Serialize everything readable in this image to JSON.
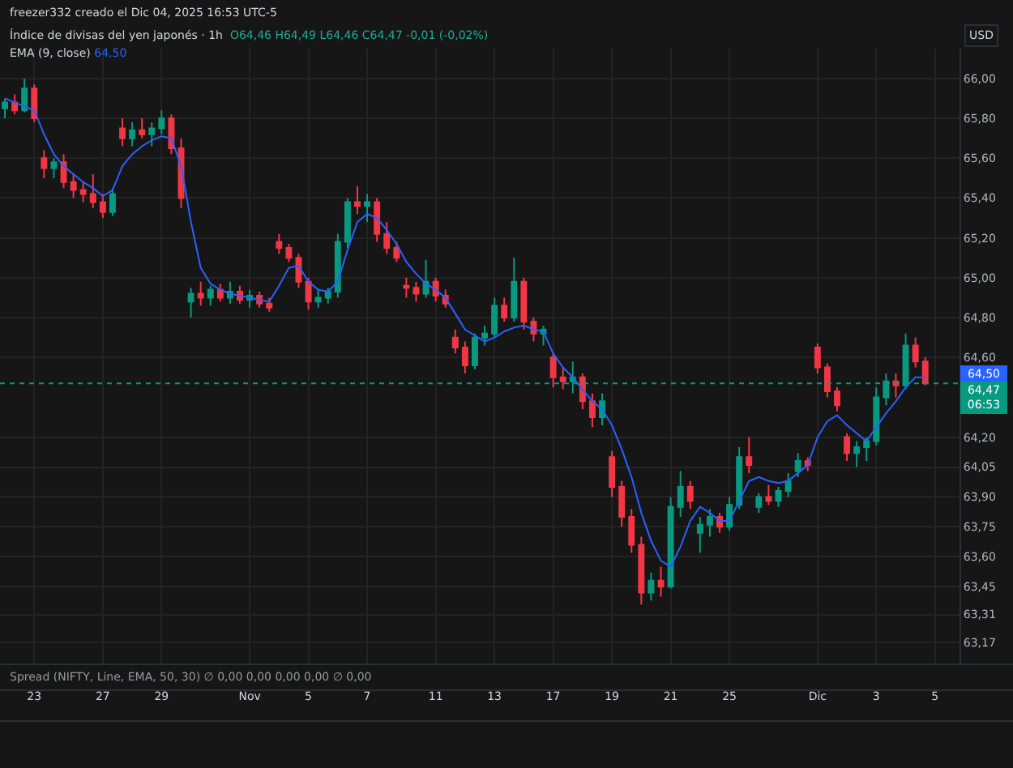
{
  "chart_data": {
    "type": "candlestick",
    "title": "Índice de divisas del yen japonés · 1h",
    "subtitle": "O64,46 H64,49 L64,46 C64,47 -0,01 (-0,02%)",
    "ylabel": "USD",
    "categories": [
      null,
      null,
      null,
      "23",
      null,
      null,
      null,
      null,
      null,
      null,
      "27",
      null,
      null,
      null,
      null,
      null,
      "29",
      null,
      null,
      null,
      null,
      null,
      null,
      null,
      null,
      "Nov",
      null,
      null,
      null,
      null,
      null,
      "5",
      null,
      null,
      null,
      null,
      null,
      "7",
      null,
      null,
      null,
      null,
      null,
      null,
      "11",
      null,
      null,
      null,
      null,
      null,
      "13",
      null,
      null,
      null,
      null,
      null,
      "17",
      null,
      null,
      null,
      null,
      null,
      "19",
      null,
      null,
      null,
      null,
      null,
      "21",
      null,
      null,
      null,
      null,
      null,
      "25",
      null,
      null,
      null,
      null,
      null,
      null,
      null,
      null,
      "Dic",
      null,
      null,
      null,
      null,
      null,
      "3",
      null,
      null,
      null,
      null,
      null,
      "5",
      null,
      null
    ],
    "series": [
      {
        "type": "line",
        "name": "EMA (9, close)",
        "color": "#2962ff",
        "values": [
          65.9,
          65.88,
          65.86,
          65.84,
          65.72,
          65.62,
          65.56,
          65.52,
          65.48,
          65.45,
          65.41,
          65.44,
          65.56,
          65.62,
          65.66,
          65.69,
          65.71,
          65.7,
          65.56,
          65.28,
          65.05,
          64.97,
          64.94,
          64.92,
          64.91,
          64.9,
          64.89,
          64.88,
          64.96,
          65.05,
          65.06,
          64.98,
          64.94,
          64.93,
          64.98,
          65.14,
          65.28,
          65.32,
          65.3,
          65.24,
          65.17,
          65.08,
          65.02,
          64.97,
          64.94,
          64.9,
          64.82,
          64.74,
          64.71,
          64.68,
          64.7,
          64.73,
          64.75,
          64.76,
          64.74,
          64.73,
          64.62,
          64.55,
          64.5,
          64.44,
          64.38,
          64.34,
          64.26,
          64.14,
          64.0,
          63.82,
          63.68,
          63.58,
          63.55,
          63.65,
          63.78,
          63.85,
          63.82,
          63.78,
          63.78,
          63.88,
          63.98,
          64.0,
          63.98,
          63.97,
          63.98,
          64.02,
          64.06,
          64.2,
          64.28,
          64.31,
          64.26,
          64.22,
          64.18,
          64.25,
          64.32,
          64.38,
          64.45,
          64.5,
          64.5,
          null,
          null,
          null
        ]
      },
      {
        "colors": [
          "#089981",
          "#f23645",
          "#089981",
          "#f23645",
          "#f23645",
          "#089981",
          "#f23645",
          "#f23645",
          "#f23645",
          "#f23645",
          "#f23645",
          "#089981",
          "#f23645",
          "#089981",
          "#f23645",
          "#089981",
          "#089981",
          "#f23645",
          "#f23645",
          "#089981",
          "#f23645",
          "#089981",
          "#f23645",
          "#089981",
          "#f23645",
          "#089981",
          "#f23645",
          "#f23645",
          "#f23645",
          "#f23645",
          "#f23645",
          "#f23645",
          "#089981",
          "#089981",
          "#089981",
          "#089981",
          "#f23645",
          "#089981",
          "#f23645",
          "#f23645",
          "#f23645",
          "#f23645",
          "#f23645",
          "#089981",
          "#f23645",
          "#f23645",
          "#f23645",
          "#f23645",
          "#089981",
          "#089981",
          "#089981",
          "#f23645",
          "#089981",
          "#f23645",
          "#f23645",
          "#089981",
          "#f23645",
          "#f23645",
          "#089981",
          "#f23645",
          "#f23645",
          "#089981",
          "#f23645",
          "#f23645",
          "#f23645",
          "#f23645",
          "#089981",
          "#f23645",
          "#089981",
          "#089981",
          "#f23645",
          "#089981",
          "#089981",
          "#f23645",
          "#089981",
          "#089981",
          "#f23645",
          "#089981",
          "#f23645",
          "#089981",
          "#089981",
          "#089981",
          "#f23645",
          "#f23645",
          "#f23645",
          "#f23645",
          "#f23645",
          "#089981",
          "#089981",
          "#089981",
          "#089981",
          "#f23645",
          "#089981",
          "#f23645",
          "#f23645",
          null,
          null,
          null
        ],
        "ohlc": [
          [
            65.85,
            65.9,
            65.8,
            65.88
          ],
          [
            65.88,
            65.92,
            65.82,
            65.84
          ],
          [
            65.84,
            66.0,
            65.83,
            65.95
          ],
          [
            65.95,
            65.97,
            65.78,
            65.8
          ],
          [
            65.6,
            65.64,
            65.5,
            65.55
          ],
          [
            65.55,
            65.6,
            65.5,
            65.58
          ],
          [
            65.58,
            65.62,
            65.45,
            65.48
          ],
          [
            65.48,
            65.52,
            65.4,
            65.44
          ],
          [
            65.44,
            65.48,
            65.38,
            65.42
          ],
          [
            65.42,
            65.52,
            65.35,
            65.38
          ],
          [
            65.38,
            65.42,
            65.3,
            65.33
          ],
          [
            65.33,
            65.45,
            65.31,
            65.42
          ],
          [
            65.75,
            65.8,
            65.66,
            65.7
          ],
          [
            65.7,
            65.78,
            65.66,
            65.74
          ],
          [
            65.74,
            65.8,
            65.7,
            65.72
          ],
          [
            65.72,
            65.78,
            65.66,
            65.75
          ],
          [
            65.75,
            65.84,
            65.72,
            65.8
          ],
          [
            65.8,
            65.82,
            65.62,
            65.65
          ],
          [
            65.65,
            65.7,
            65.35,
            65.4
          ],
          [
            64.88,
            64.95,
            64.8,
            64.92
          ],
          [
            64.92,
            64.98,
            64.86,
            64.9
          ],
          [
            64.9,
            64.96,
            64.86,
            64.94
          ],
          [
            64.94,
            64.97,
            64.88,
            64.9
          ],
          [
            64.9,
            64.98,
            64.87,
            64.93
          ],
          [
            64.93,
            64.96,
            64.87,
            64.89
          ],
          [
            64.89,
            64.94,
            64.85,
            64.91
          ],
          [
            64.91,
            64.93,
            64.85,
            64.87
          ],
          [
            64.87,
            64.9,
            64.83,
            64.85
          ],
          [
            65.18,
            65.22,
            65.12,
            65.15
          ],
          [
            65.15,
            65.17,
            65.08,
            65.1
          ],
          [
            65.1,
            65.12,
            64.95,
            64.98
          ],
          [
            64.98,
            65.0,
            64.84,
            64.88
          ],
          [
            64.88,
            64.94,
            64.85,
            64.9
          ],
          [
            64.9,
            64.95,
            64.87,
            64.93
          ],
          [
            64.93,
            65.22,
            64.9,
            65.18
          ],
          [
            65.18,
            65.4,
            65.15,
            65.38
          ],
          [
            65.38,
            65.46,
            65.32,
            65.36
          ],
          [
            65.36,
            65.42,
            65.28,
            65.38
          ],
          [
            65.38,
            65.4,
            65.18,
            65.22
          ],
          [
            65.22,
            65.28,
            65.12,
            65.15
          ],
          [
            65.15,
            65.18,
            65.08,
            65.1
          ],
          [
            64.96,
            65.0,
            64.9,
            64.95
          ],
          [
            64.95,
            64.98,
            64.88,
            64.92
          ],
          [
            64.92,
            65.09,
            64.9,
            64.98
          ],
          [
            64.98,
            65.0,
            64.88,
            64.91
          ],
          [
            64.91,
            64.94,
            64.85,
            64.87
          ],
          [
            64.7,
            64.74,
            64.62,
            64.65
          ],
          [
            64.65,
            64.68,
            64.52,
            64.56
          ],
          [
            64.56,
            64.72,
            64.54,
            64.7
          ],
          [
            64.7,
            64.76,
            64.66,
            64.72
          ],
          [
            64.72,
            64.9,
            64.7,
            64.86
          ],
          [
            64.86,
            64.9,
            64.78,
            64.8
          ],
          [
            64.8,
            65.1,
            64.78,
            64.98
          ],
          [
            64.98,
            65.0,
            64.74,
            64.78
          ],
          [
            64.78,
            64.8,
            64.68,
            64.72
          ],
          [
            64.72,
            64.76,
            64.66,
            64.74
          ],
          [
            64.6,
            64.62,
            64.45,
            64.5
          ],
          [
            64.5,
            64.55,
            64.44,
            64.48
          ],
          [
            64.48,
            64.58,
            64.42,
            64.5
          ],
          [
            64.5,
            64.52,
            64.34,
            64.38
          ],
          [
            64.38,
            64.42,
            64.25,
            64.3
          ],
          [
            64.3,
            64.42,
            64.26,
            64.38
          ],
          [
            64.1,
            64.13,
            63.9,
            63.95
          ],
          [
            63.95,
            63.98,
            63.75,
            63.8
          ],
          [
            63.8,
            63.84,
            63.62,
            63.66
          ],
          [
            63.66,
            63.7,
            63.36,
            63.42
          ],
          [
            63.42,
            63.52,
            63.38,
            63.48
          ],
          [
            63.48,
            63.55,
            63.4,
            63.45
          ],
          [
            63.45,
            63.9,
            63.44,
            63.85
          ],
          [
            63.85,
            64.03,
            63.8,
            63.95
          ],
          [
            63.95,
            63.98,
            63.84,
            63.88
          ],
          [
            63.72,
            63.8,
            63.62,
            63.76
          ],
          [
            63.76,
            63.84,
            63.7,
            63.8
          ],
          [
            63.8,
            63.82,
            63.72,
            63.75
          ],
          [
            63.75,
            63.9,
            63.73,
            63.86
          ],
          [
            63.86,
            64.15,
            63.84,
            64.1
          ],
          [
            64.1,
            64.2,
            64.02,
            64.06
          ],
          [
            63.85,
            63.92,
            63.82,
            63.9
          ],
          [
            63.9,
            63.96,
            63.86,
            63.88
          ],
          [
            63.88,
            63.95,
            63.85,
            63.93
          ],
          [
            63.93,
            64.02,
            63.9,
            63.98
          ],
          [
            64.03,
            64.12,
            64.0,
            64.08
          ],
          [
            64.08,
            64.1,
            64.03,
            64.06
          ],
          [
            64.65,
            64.67,
            64.52,
            64.55
          ],
          [
            64.55,
            64.57,
            64.4,
            64.43
          ],
          [
            64.43,
            64.45,
            64.33,
            64.36
          ],
          [
            64.2,
            64.22,
            64.08,
            64.12
          ],
          [
            64.12,
            64.18,
            64.05,
            64.15
          ],
          [
            64.15,
            64.2,
            64.08,
            64.18
          ],
          [
            64.18,
            64.45,
            64.16,
            64.4
          ],
          [
            64.4,
            64.52,
            64.36,
            64.48
          ],
          [
            64.48,
            64.52,
            64.4,
            64.46
          ],
          [
            64.46,
            64.72,
            64.44,
            64.66
          ],
          [
            64.66,
            64.7,
            64.55,
            64.58
          ],
          [
            64.58,
            64.6,
            64.46,
            64.47
          ],
          null,
          null,
          null
        ]
      }
    ],
    "ylim": [
      63.06,
      66.15
    ],
    "yticks": [
      {
        "value": 63.17,
        "label": "63,17"
      },
      {
        "value": 63.31,
        "label": "63,31"
      },
      {
        "value": 63.45,
        "label": "63,45"
      },
      {
        "value": 63.6,
        "label": "63,60"
      },
      {
        "value": 63.75,
        "label": "63,75"
      },
      {
        "value": 63.9,
        "label": "63,90"
      },
      {
        "value": 64.05,
        "label": "64,05"
      },
      {
        "value": 64.2,
        "label": "64,20"
      },
      {
        "value": 64.6,
        "label": "64,60"
      },
      {
        "value": 64.8,
        "label": "64,80"
      },
      {
        "value": 65.0,
        "label": "65,00"
      },
      {
        "value": 65.2,
        "label": "65,20"
      },
      {
        "value": 65.4,
        "label": "65,40"
      },
      {
        "value": 65.6,
        "label": "65,60"
      },
      {
        "value": 65.8,
        "label": "65,80"
      },
      {
        "value": 66.0,
        "label": "66,00"
      }
    ],
    "grid": true,
    "ref_lines": [
      {
        "axis": "y",
        "value": 64.47,
        "color": "#089981",
        "line_style": "dotted"
      }
    ],
    "annotations": [
      "freezer332 creado el Dic 04, 2025 16:53 UTC-5",
      "64,50",
      "64,50",
      "64,47",
      "06:53",
      "Spread (NIFTY, Line, EMA, 50, 30) ∅ 0,00 0,00 0,00 0,00 ∅ 0,00"
    ]
  }
}
